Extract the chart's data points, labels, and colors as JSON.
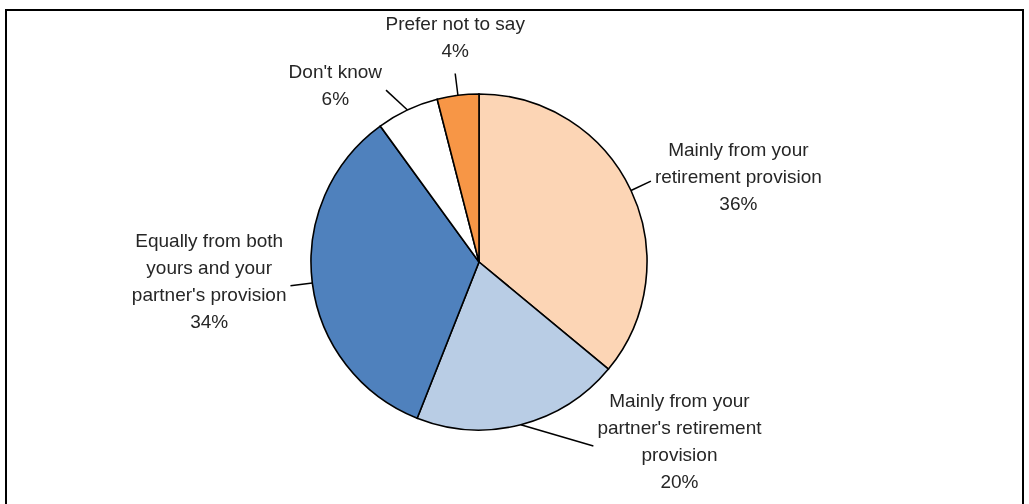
{
  "chart_data": {
    "type": "pie",
    "categories": [
      "Mainly from your retirement provision",
      "Mainly from your partner's retirement provision",
      "Equally from both yours and your partner's provision",
      "Don't know",
      "Prefer not to say"
    ],
    "values": [
      36,
      20,
      34,
      6,
      4
    ],
    "value_labels": [
      "36%",
      "20%",
      "34%",
      "6%",
      "4%"
    ],
    "colors": [
      "#fcd5b5",
      "#b9cde5",
      "#4f81bd",
      "#ffffff",
      "#f79646"
    ]
  }
}
